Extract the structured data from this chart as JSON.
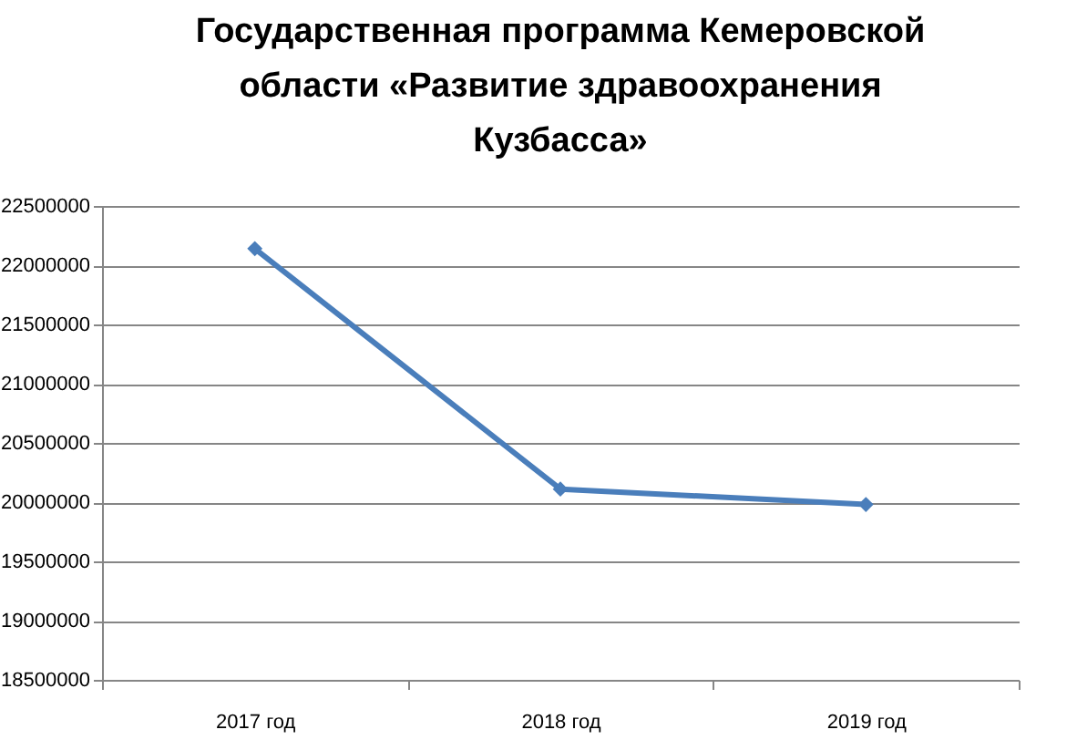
{
  "chart_data": {
    "type": "line",
    "title": [
      "Государственная программа Кемеровской",
      "области «Развитие здравоохранения",
      "Кузбасса»"
    ],
    "categories": [
      "2017 год",
      "2018 год",
      "2019 год"
    ],
    "series": [
      {
        "color": "#4a7ebb",
        "values": [
          22140000,
          20110000,
          19980000
        ]
      }
    ],
    "ylim": [
      18500000,
      22500000
    ],
    "yticks": [
      18500000,
      19000000,
      19500000,
      20000000,
      20500000,
      21000000,
      21500000,
      22000000,
      22500000
    ],
    "grid": "y",
    "marker": "diamond",
    "line_style": "solid"
  }
}
